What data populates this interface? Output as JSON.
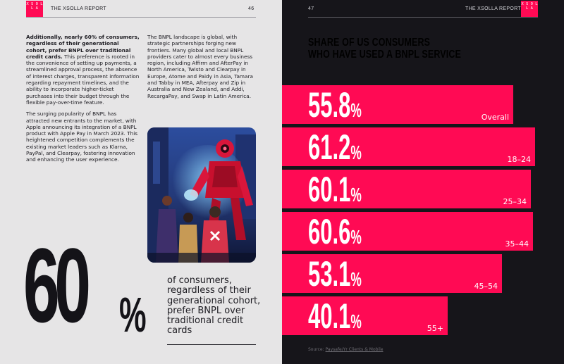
{
  "left_page": {
    "header": {
      "title": "THE XSOLLA REPORT",
      "page_number": "46",
      "logo_text": "X S O L L A"
    },
    "column1": {
      "p1_bold": "Additionally, nearly 60% of consumers, regardless of their generational cohort, prefer BNPL over traditional credit cards.",
      "p1_rest": " This preference is rooted in the convenience of setting up payments, a streamlined approval process, the absence of interest charges, transparent information regarding repayment timelines, and the ability to incorporate higher-ticket purchases into their budget through the flexible pay-over-time feature.",
      "p2": "The surging popularity of BNPL has attracted new entrants to the market, with Apple announcing its integration of a BNPL product with Apple Pay in March 2023. This heightened competition complements the existing market leaders such as Klarna, PayPal, and Clearpay, fostering innovation and enhancing the user experience."
    },
    "column2": {
      "p1": "The BNPL landscape is global, with strategic partnerships forging new frontiers. Many global and local BNPL providers cater to almost every business region, including Affirm and AfterPay in North America, Twisto and Clearpay in Europe, Atome and Paidy in Asia, Tamara and Tabby in MEA, Afterpay and Zip in Australia and New Zealand, and Addi, RecargaPay, and Swap in Latin America."
    },
    "big_stat": {
      "number": "60",
      "unit": "%",
      "caption": "of consumers, regardless of their generational cohort, prefer BNPL over traditional credit cards"
    }
  },
  "right_page": {
    "header": {
      "title": "THE XSOLLA REPORT",
      "page_number": "47",
      "logo_text": "X S O L L A"
    },
    "source_label": "Source:",
    "source_name": "Paysafe/Yr Clients & Mobile"
  },
  "chart_data": {
    "type": "bar",
    "orientation": "horizontal",
    "title": "SHARE OF US CONSUMERS WHO HAVE USED A BNPL SERVICE",
    "title_line1": "SHARE OF US CONSUMERS",
    "title_line2": "WHO HAVE USED A BNPL SERVICE",
    "unit": "%",
    "xlim": [
      0,
      62
    ],
    "categories": [
      "Overall",
      "18–24",
      "25–34",
      "35–44",
      "45–54",
      "55+"
    ],
    "values": [
      55.8,
      61.2,
      60.1,
      60.6,
      53.1,
      40.1
    ],
    "value_labels": [
      "55.8",
      "61.2",
      "60.1",
      "60.6",
      "53.1",
      "40.1"
    ],
    "bar_color": "#ff0a54"
  },
  "colors": {
    "accent": "#ff0a54",
    "left_bg": "#e6e5e6",
    "right_bg": "#16151a"
  }
}
